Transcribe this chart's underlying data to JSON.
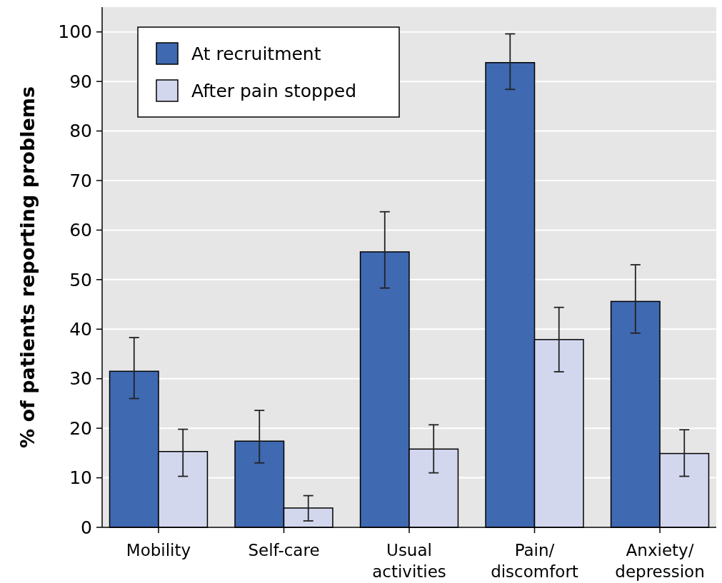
{
  "chart_data": {
    "type": "bar",
    "ylabel": "% of patients reporting problems",
    "categories": [
      "Mobility",
      "Self-care",
      "Usual\nactivities",
      "Pain/\ndiscomfort",
      "Anxiety/\ndepression"
    ],
    "series": [
      {
        "name": "At recruitment",
        "color": "#3f69b1",
        "values": [
          31.5,
          17.4,
          55.6,
          93.8,
          45.6
        ],
        "errors": [
          [
            26.0,
            38.3
          ],
          [
            13.0,
            23.6
          ],
          [
            48.3,
            63.7
          ],
          [
            88.4,
            99.6
          ],
          [
            39.2,
            53.0
          ]
        ]
      },
      {
        "name": "After pain stopped",
        "color": "#d3d7ee",
        "values": [
          15.3,
          3.9,
          15.8,
          37.9,
          14.9
        ],
        "errors": [
          [
            10.3,
            19.8
          ],
          [
            1.3,
            6.4
          ],
          [
            11.0,
            20.7
          ],
          [
            31.4,
            44.4
          ],
          [
            10.3,
            19.7
          ]
        ]
      }
    ],
    "ylim": [
      0,
      105
    ],
    "yticks": [
      0,
      10,
      20,
      30,
      40,
      50,
      60,
      70,
      80,
      90,
      100
    ],
    "grid": "y",
    "legend": "top left"
  }
}
